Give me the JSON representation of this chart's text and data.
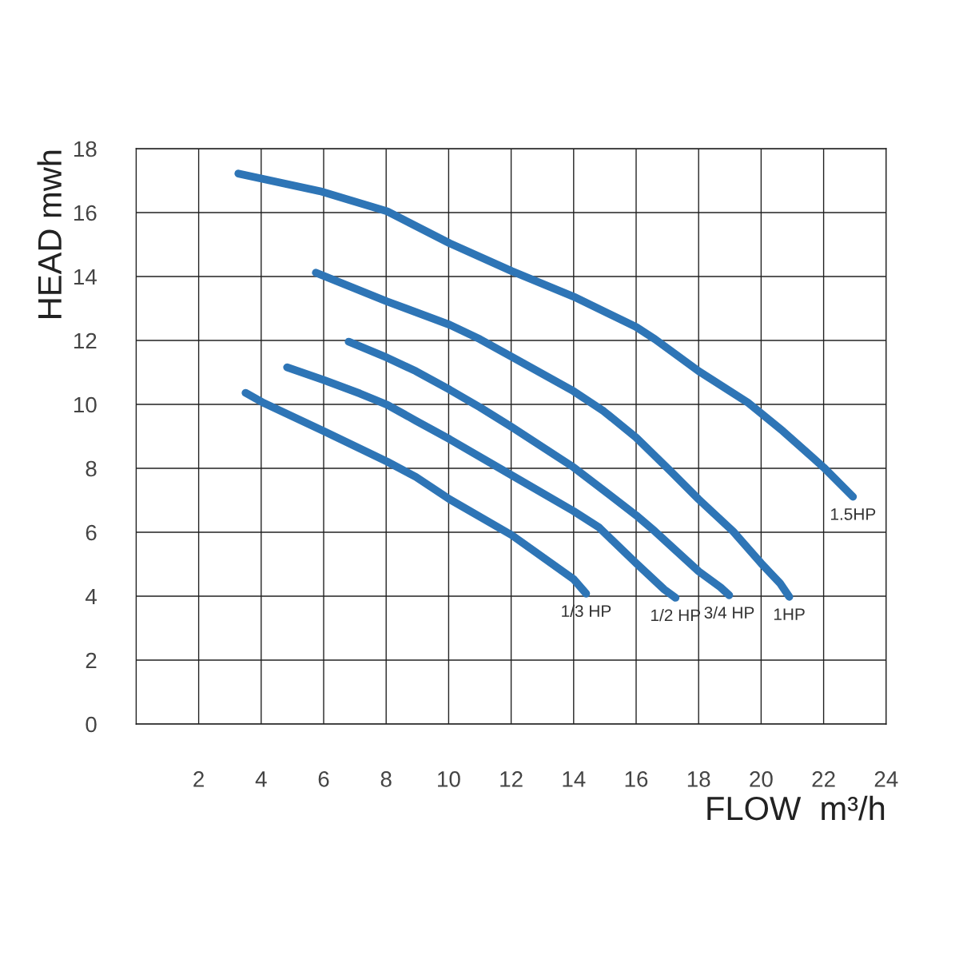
{
  "chart_data": {
    "type": "line",
    "xlabel": "FLOW  m³/h",
    "ylabel": "HEAD mwh",
    "xlim": [
      0,
      24
    ],
    "ylim": [
      0,
      18
    ],
    "xticks": [
      2,
      4,
      6,
      8,
      10,
      12,
      14,
      16,
      18,
      20,
      22,
      24
    ],
    "yticks": [
      0,
      2,
      4,
      6,
      8,
      10,
      12,
      14,
      16,
      18
    ],
    "grid": true,
    "legend": false,
    "marker": "none",
    "line_style": "solid",
    "series": [
      {
        "name": "1/3 HP",
        "color": "#2e75b6",
        "x": [
          3.5,
          4.09,
          6.01,
          8.03,
          8.95,
          10.03,
          12.02,
          14.0,
          14.4
        ],
        "values": [
          10.36,
          10.04,
          9.16,
          8.21,
          7.73,
          7.03,
          5.91,
          4.53,
          4.08
        ]
      },
      {
        "name": "1/2 HP",
        "color": "#2e75b6",
        "x": [
          4.83,
          6.01,
          7.16,
          8.03,
          8.95,
          10.03,
          12.02,
          14.0,
          14.8,
          16.0,
          16.9,
          17.26
        ],
        "values": [
          11.16,
          10.76,
          10.34,
          9.99,
          9.49,
          8.91,
          7.78,
          6.66,
          6.16,
          5.03,
          4.21,
          3.95
        ]
      },
      {
        "name": "3/4 HP",
        "color": "#2e75b6",
        "x": [
          6.8,
          8.03,
          8.95,
          10.03,
          11.0,
          12.02,
          14.0,
          16.0,
          16.6,
          18.0,
          18.7,
          18.98
        ],
        "values": [
          11.96,
          11.46,
          11.04,
          10.46,
          9.91,
          9.29,
          8.03,
          6.53,
          6.03,
          4.78,
          4.28,
          4.03
        ]
      },
      {
        "name": "1HP",
        "color": "#2e75b6",
        "x": [
          5.75,
          8.03,
          10.03,
          11.0,
          12.02,
          14.0,
          14.96,
          16.0,
          17.1,
          18.0,
          19.1,
          20.0,
          20.6,
          20.9
        ],
        "values": [
          14.12,
          13.22,
          12.49,
          12.04,
          11.49,
          10.41,
          9.79,
          8.96,
          7.91,
          7.03,
          6.03,
          5.03,
          4.41,
          3.98
        ]
      },
      {
        "name": "1.5HP",
        "color": "#2e75b6",
        "x": [
          3.27,
          5.88,
          8.03,
          10.03,
          12.02,
          14.0,
          16.0,
          16.6,
          18.0,
          19.6,
          20.7,
          22.0,
          22.94
        ],
        "values": [
          17.22,
          16.67,
          16.04,
          15.04,
          14.17,
          13.37,
          12.42,
          12.04,
          11.04,
          10.04,
          9.16,
          8.03,
          7.11
        ]
      }
    ]
  }
}
